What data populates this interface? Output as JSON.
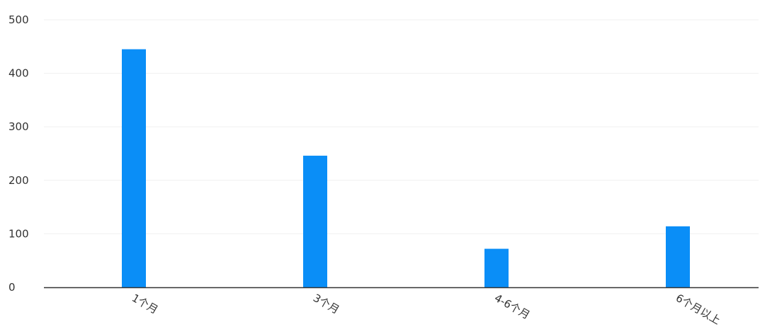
{
  "chart_data": {
    "type": "bar",
    "categories": [
      "1个月",
      "3个月",
      "4-6个月",
      "6个月以上"
    ],
    "values": [
      445,
      246,
      72,
      114
    ],
    "ylim": [
      0,
      500
    ],
    "yticks": [
      0,
      100,
      200,
      300,
      400,
      500
    ],
    "grid": true,
    "x_label_rotation_deg": 30,
    "colors": {
      "bar": "#0a8ef7",
      "axis": "#333333",
      "grid": "#f0f0f0",
      "text": "#333333"
    }
  }
}
